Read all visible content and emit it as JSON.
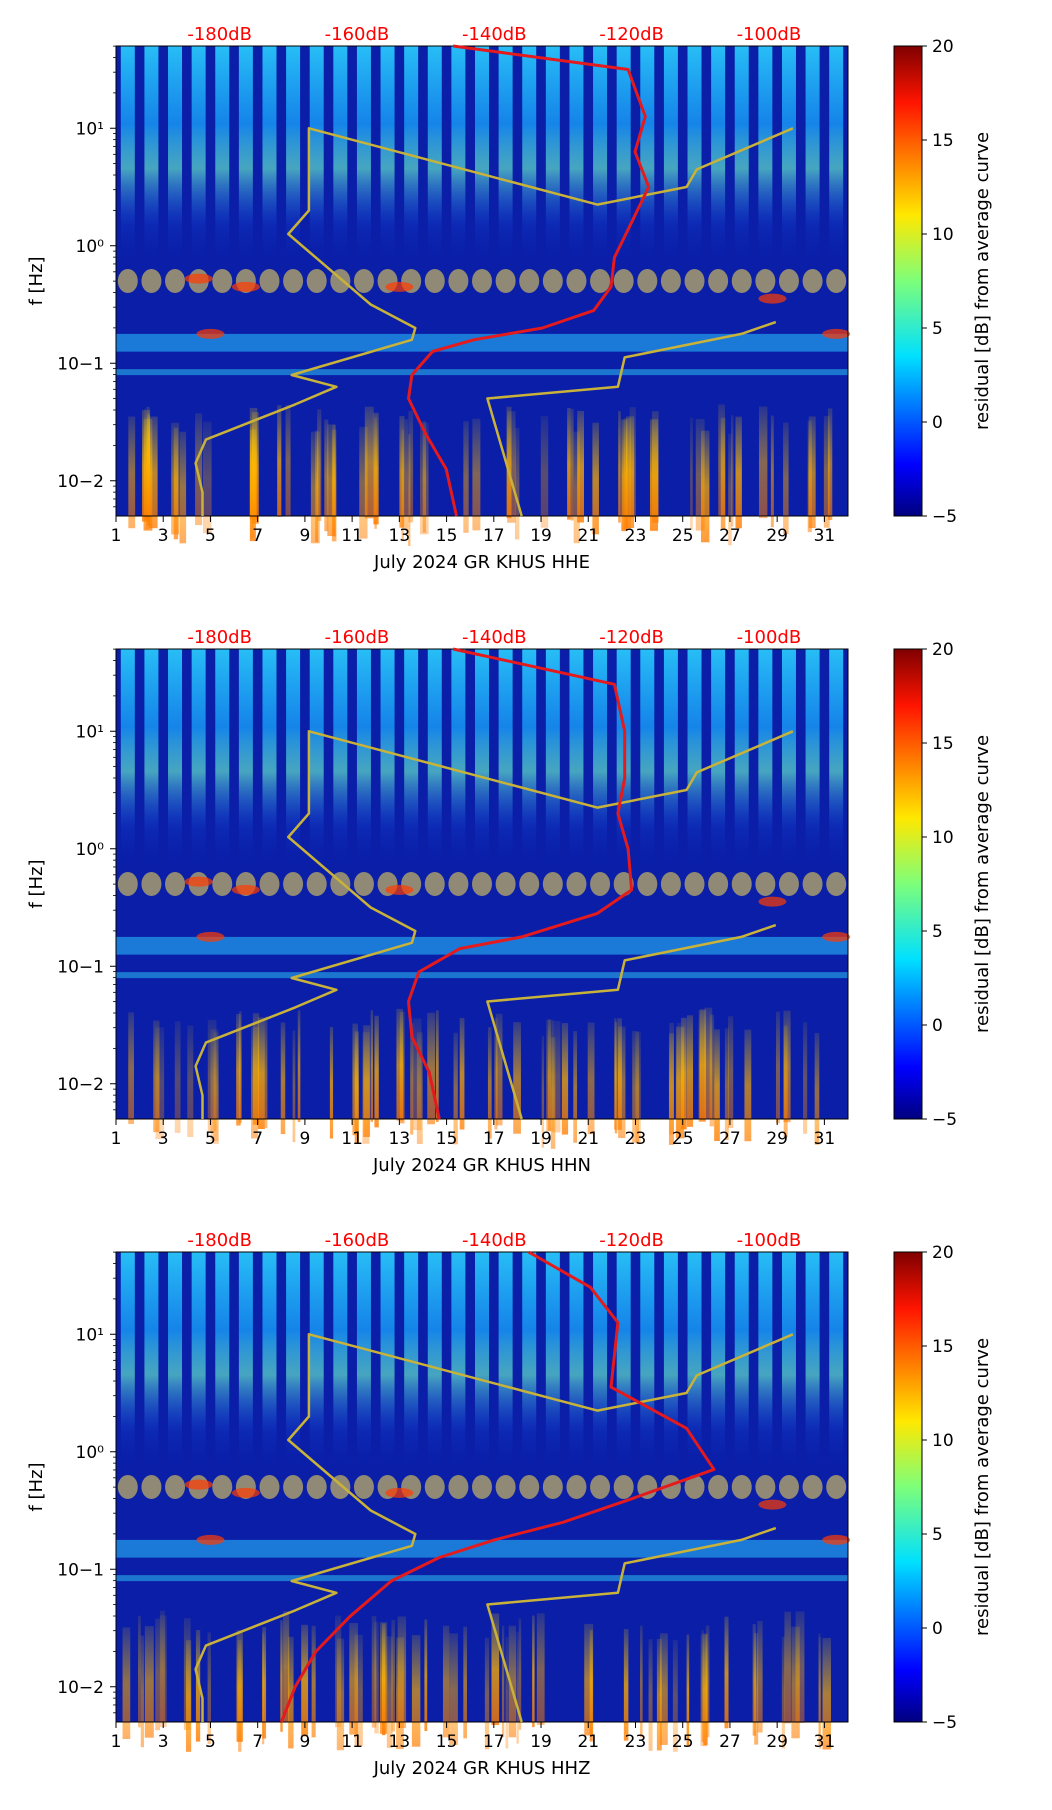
{
  "chart_data": [
    {
      "type": "heatmap",
      "title": "July 2024 GR KHUS  HHE",
      "xlabel": "July 2024 GR KHUS  HHE",
      "ylabel": "f [Hz]",
      "x_ticks": [
        "1",
        "3",
        "5",
        "7",
        "9",
        "11",
        "13",
        "15",
        "17",
        "19",
        "21",
        "23",
        "25",
        "27",
        "29",
        "31"
      ],
      "y_ticks": [
        "10−2",
        "10−1",
        "10⁰",
        "10¹"
      ],
      "db_ticks": [
        "-180dB",
        "-160dB",
        "-140dB",
        "-120dB",
        "-100dB"
      ],
      "xlim": [
        1,
        32
      ],
      "ylim_log10": [
        -2.3,
        1.7
      ],
      "colorbar": {
        "label": "residual [dB] from average curve",
        "ticks": [
          "−5",
          "0",
          "5",
          "10",
          "15",
          "20"
        ],
        "range": [
          -5,
          20
        ]
      },
      "red_curve_db_vs_log10f": [
        [
          -145.5,
          -2.3
        ],
        [
          -147,
          -1.9
        ],
        [
          -150,
          -1.6
        ],
        [
          -152.5,
          -1.3
        ],
        [
          -152,
          -1.1
        ],
        [
          -149,
          -0.9
        ],
        [
          -143,
          -0.8
        ],
        [
          -133,
          -0.7
        ],
        [
          -125.5,
          -0.55
        ],
        [
          -123,
          -0.35
        ],
        [
          -122.5,
          -0.1
        ],
        [
          -120,
          0.2
        ],
        [
          -117.5,
          0.5
        ],
        [
          -119.5,
          0.8
        ],
        [
          -118,
          1.1
        ],
        [
          -120.5,
          1.5
        ],
        [
          -146,
          1.7
        ]
      ],
      "yellow_curve_db_vs_log10f": [
        [
          -182.5,
          -2.3
        ],
        [
          -182.5,
          -2.1
        ],
        [
          -183.5,
          -1.85
        ],
        [
          -182,
          -1.65
        ],
        [
          -169,
          -1.35
        ],
        [
          -163,
          -1.2
        ],
        [
          -169.5,
          -1.1
        ],
        [
          -152,
          -0.8
        ],
        [
          -151.5,
          -0.7
        ],
        [
          -158,
          -0.5
        ],
        [
          -170,
          0.1
        ],
        [
          -167,
          0.3
        ],
        [
          -167,
          1.0
        ],
        [
          -125,
          0.35
        ],
        [
          -112,
          0.5
        ],
        [
          -110.5,
          0.65
        ],
        [
          -96.5,
          1.0
        ]
      ],
      "yellow_lower_db_vs_log10f": [
        [
          -136,
          -2.3
        ],
        [
          -141,
          -1.3
        ],
        [
          -122,
          -1.2
        ],
        [
          -121,
          -0.95
        ],
        [
          -104,
          -0.75
        ],
        [
          -99,
          -0.65
        ]
      ]
    },
    {
      "type": "heatmap",
      "title": "July 2024 GR KHUS  HHN",
      "xlabel": "July 2024 GR KHUS  HHN",
      "ylabel": "f [Hz]",
      "x_ticks": [
        "1",
        "3",
        "5",
        "7",
        "9",
        "11",
        "13",
        "15",
        "17",
        "19",
        "21",
        "23",
        "25",
        "27",
        "29",
        "31"
      ],
      "y_ticks": [
        "10−2",
        "10−1",
        "10⁰",
        "10¹"
      ],
      "db_ticks": [
        "-180dB",
        "-160dB",
        "-140dB",
        "-120dB",
        "-100dB"
      ],
      "xlim": [
        1,
        32
      ],
      "ylim_log10": [
        -2.3,
        1.7
      ],
      "colorbar": {
        "label": "residual [dB] from average curve",
        "ticks": [
          "−5",
          "0",
          "5",
          "10",
          "15",
          "20"
        ],
        "range": [
          -5,
          20
        ]
      },
      "red_curve_db_vs_log10f": [
        [
          -148,
          -2.3
        ],
        [
          -149.5,
          -1.9
        ],
        [
          -152,
          -1.6
        ],
        [
          -152.5,
          -1.3
        ],
        [
          -151,
          -1.05
        ],
        [
          -145,
          -0.85
        ],
        [
          -136,
          -0.75
        ],
        [
          -125,
          -0.55
        ],
        [
          -120,
          -0.35
        ],
        [
          -120.5,
          0.0
        ],
        [
          -122,
          0.3
        ],
        [
          -121,
          0.6
        ],
        [
          -121,
          1.0
        ],
        [
          -122.5,
          1.4
        ],
        [
          -146,
          1.7
        ]
      ],
      "yellow_curve_db_vs_log10f": [
        [
          -182.5,
          -2.3
        ],
        [
          -182.5,
          -2.1
        ],
        [
          -183.5,
          -1.85
        ],
        [
          -182,
          -1.65
        ],
        [
          -169,
          -1.35
        ],
        [
          -163,
          -1.2
        ],
        [
          -169.5,
          -1.1
        ],
        [
          -152,
          -0.8
        ],
        [
          -151.5,
          -0.7
        ],
        [
          -158,
          -0.5
        ],
        [
          -170,
          0.1
        ],
        [
          -167,
          0.3
        ],
        [
          -167,
          1.0
        ],
        [
          -125,
          0.35
        ],
        [
          -112,
          0.5
        ],
        [
          -110.5,
          0.65
        ],
        [
          -96.5,
          1.0
        ]
      ],
      "yellow_lower_db_vs_log10f": [
        [
          -136,
          -2.3
        ],
        [
          -141,
          -1.3
        ],
        [
          -122,
          -1.2
        ],
        [
          -121,
          -0.95
        ],
        [
          -104,
          -0.75
        ],
        [
          -99,
          -0.65
        ]
      ]
    },
    {
      "type": "heatmap",
      "title": "July 2024 GR KHUS  HHZ",
      "xlabel": "July 2024 GR KHUS  HHZ",
      "ylabel": "f [Hz]",
      "x_ticks": [
        "1",
        "3",
        "5",
        "7",
        "9",
        "11",
        "13",
        "15",
        "17",
        "19",
        "21",
        "23",
        "25",
        "27",
        "29",
        "31"
      ],
      "y_ticks": [
        "10−2",
        "10−1",
        "10⁰",
        "10¹"
      ],
      "db_ticks": [
        "-180dB",
        "-160dB",
        "-140dB",
        "-120dB",
        "-100dB"
      ],
      "xlim": [
        1,
        32
      ],
      "ylim_log10": [
        -2.3,
        1.7
      ],
      "colorbar": {
        "label": "residual [dB] from average curve",
        "ticks": [
          "−5",
          "0",
          "5",
          "10",
          "15",
          "20"
        ],
        "range": [
          -5,
          20
        ]
      },
      "red_curve_db_vs_log10f": [
        [
          -171,
          -2.3
        ],
        [
          -169,
          -2.0
        ],
        [
          -166,
          -1.7
        ],
        [
          -161,
          -1.4
        ],
        [
          -155,
          -1.1
        ],
        [
          -148,
          -0.9
        ],
        [
          -140,
          -0.75
        ],
        [
          -130,
          -0.6
        ],
        [
          -120,
          -0.4
        ],
        [
          -108,
          -0.15
        ],
        [
          -112,
          0.2
        ],
        [
          -123,
          0.55
        ],
        [
          -122,
          1.1
        ],
        [
          -126,
          1.4
        ],
        [
          -135,
          1.7
        ]
      ],
      "yellow_curve_db_vs_log10f": [
        [
          -182.5,
          -2.3
        ],
        [
          -182.5,
          -2.1
        ],
        [
          -183.5,
          -1.85
        ],
        [
          -182,
          -1.65
        ],
        [
          -169,
          -1.35
        ],
        [
          -163,
          -1.2
        ],
        [
          -169.5,
          -1.1
        ],
        [
          -152,
          -0.8
        ],
        [
          -151.5,
          -0.7
        ],
        [
          -158,
          -0.5
        ],
        [
          -170,
          0.1
        ],
        [
          -167,
          0.3
        ],
        [
          -167,
          1.0
        ],
        [
          -125,
          0.35
        ],
        [
          -112,
          0.5
        ],
        [
          -110.5,
          0.65
        ],
        [
          -96.5,
          1.0
        ]
      ],
      "yellow_lower_db_vs_log10f": [
        [
          -136,
          -2.3
        ],
        [
          -141,
          -1.3
        ],
        [
          -122,
          -1.2
        ],
        [
          -121,
          -0.95
        ],
        [
          -104,
          -0.75
        ],
        [
          -99,
          -0.65
        ]
      ]
    }
  ],
  "colors": {
    "red_curve": "#e41a1c",
    "yellow_curve": "#c8b23a",
    "db_label": "#ff0000",
    "heat_background": "#0a1ea8"
  }
}
